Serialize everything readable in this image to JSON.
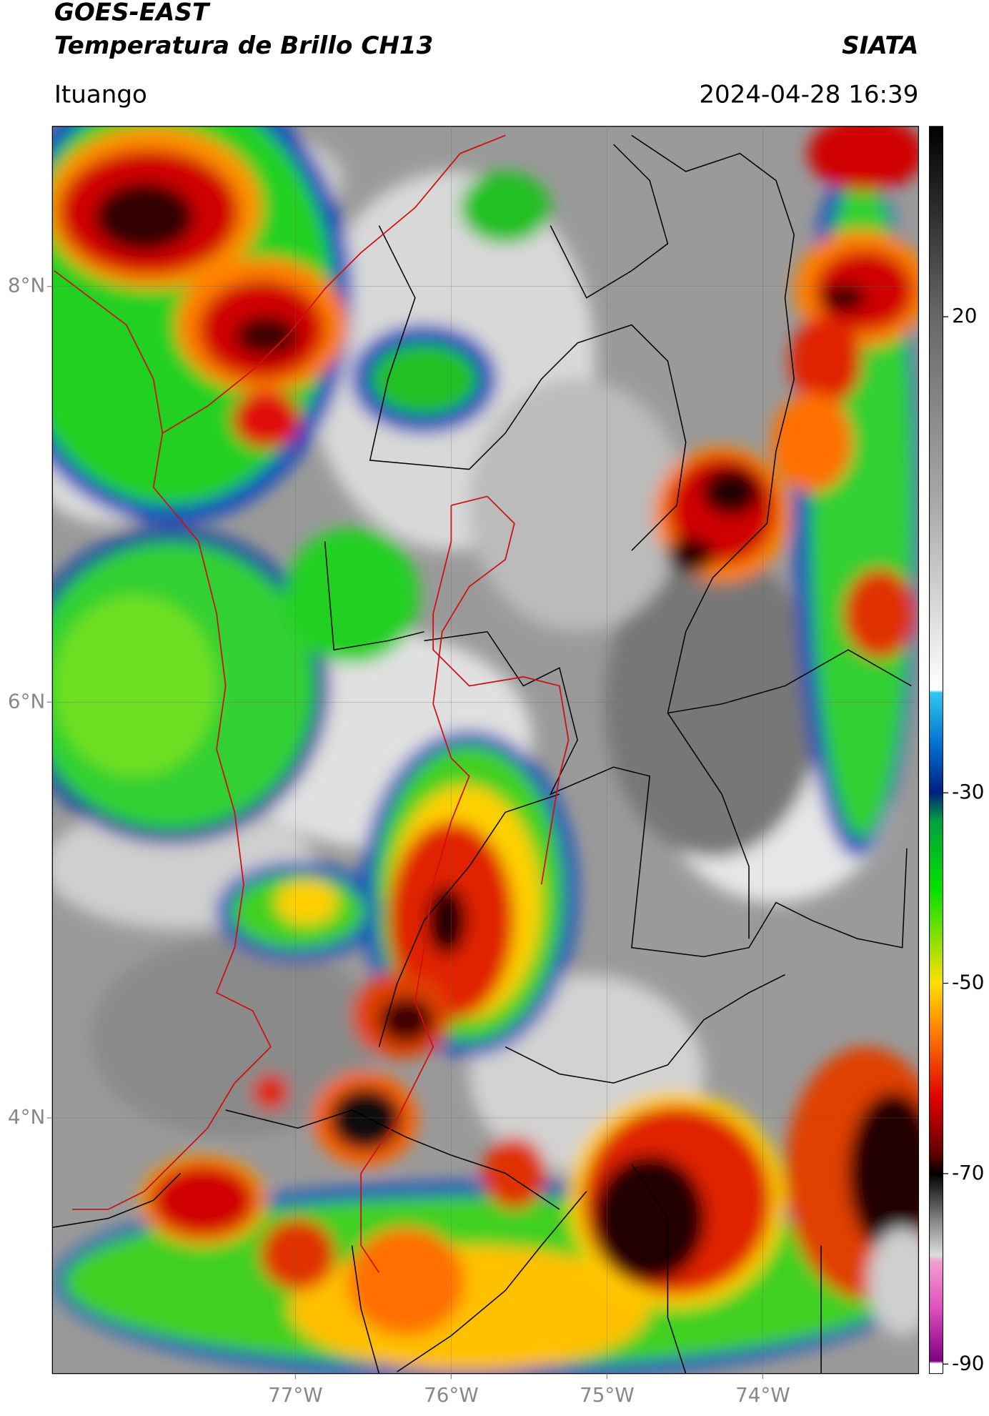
{
  "header": {
    "title": "GOES-EAST",
    "subtitle": "Temperatura de Brillo CH13",
    "source": "SIATA",
    "location": "Ituango",
    "datetime": "2024-04-28 16:39"
  },
  "map": {
    "xlim": [
      -78.56,
      -73.0
    ],
    "ylim": [
      2.77,
      8.77
    ],
    "xticks": [
      {
        "value": -77,
        "label": "77°W"
      },
      {
        "value": -76,
        "label": "76°W"
      },
      {
        "value": -75,
        "label": "75°W"
      },
      {
        "value": -74,
        "label": "74°W"
      }
    ],
    "yticks": [
      {
        "value": 8,
        "label": "8°N"
      },
      {
        "value": 6,
        "label": "6°N"
      },
      {
        "value": 4,
        "label": "4°N"
      }
    ],
    "grid": true
  },
  "colorbar": {
    "lim": [
      -91,
      40
    ],
    "ticks": [
      20,
      -30,
      -50,
      -70,
      -90
    ]
  }
}
